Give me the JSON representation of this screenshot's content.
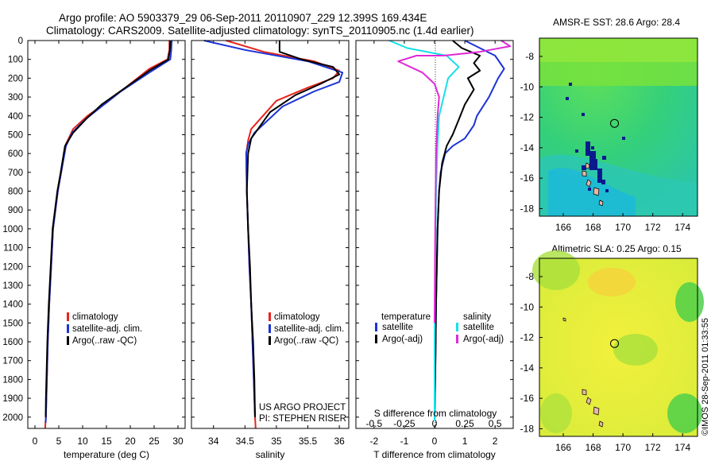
{
  "header": {
    "line1": "Argo profile: AO 5903379_29 06-Sep-2011 20110907_229 12.399S 169.434E",
    "line2": "Climatology: CARS2009. Satellite-adjusted climatology: synTS_20110905.nc (1.4d earlier)"
  },
  "colors": {
    "climatology": "#e8251c",
    "satellite": "#1c33d6",
    "argo": "#000000",
    "sal_satellite": "#16e0e8",
    "sal_argo": "#e029d6"
  },
  "credits": {
    "project": "US ARGO PROJECT",
    "pi": "PI: STEPHEN RISER",
    "stamp": "©IMOS 28-Sep-2011 01:33:55"
  },
  "legend_profiles": {
    "climatology": "climatology",
    "satellite": "satellite-adj. clim.",
    "argo": "Argo(..raw -QC)"
  },
  "legend_diff": {
    "temperature": "temperature",
    "salinity": "salinity",
    "satellite": "satellite",
    "argo": "Argo(-adj)"
  },
  "chart_data": [
    {
      "type": "line",
      "id": "temperature",
      "xlabel": "temperature (deg C)",
      "xlim": [
        -1.5,
        31.5
      ],
      "xticks": [
        0,
        5,
        10,
        15,
        20,
        25,
        30
      ],
      "ylim": [
        0,
        2060
      ],
      "yticks": [
        0,
        100,
        200,
        300,
        400,
        500,
        600,
        700,
        800,
        900,
        1000,
        1100,
        1200,
        1300,
        1400,
        1500,
        1600,
        1700,
        1800,
        1900,
        2000
      ],
      "y_reversed": true,
      "series": [
        {
          "name": "climatology",
          "color_key": "climatology",
          "x": [
            28.2,
            28.2,
            27.8,
            24,
            19,
            15,
            11,
            8,
            6.5,
            5.5,
            4.8,
            4.3,
            3.8,
            3.4,
            3.0,
            2.7,
            2.5,
            2.4,
            2.3,
            2.2,
            2.15
          ],
          "y": [
            0,
            50,
            100,
            150,
            250,
            330,
            400,
            470,
            550,
            700,
            800,
            900,
            1000,
            1200,
            1400,
            1600,
            1800,
            1900,
            2000,
            2030,
            2060
          ]
        },
        {
          "name": "satellite-adj. clim.",
          "color_key": "satellite",
          "x": [
            28.7,
            28.6,
            28.4,
            24,
            18,
            14,
            10.5,
            7.8,
            6.5,
            5.5,
            4.8,
            4.3,
            3.8,
            3.4,
            3.0,
            2.7,
            2.5,
            2.4,
            2.3,
            2.25
          ],
          "y": [
            0,
            50,
            100,
            170,
            270,
            350,
            420,
            490,
            560,
            700,
            800,
            900,
            1000,
            1200,
            1400,
            1600,
            1800,
            1900,
            2000,
            2030
          ]
        },
        {
          "name": "Argo(..raw -QC)",
          "color_key": "argo",
          "x": [
            28.4,
            28.3,
            28.0,
            24,
            19,
            14,
            11,
            8,
            6.3,
            5.4,
            4.7,
            4.2,
            3.7,
            3.3,
            2.9,
            2.6,
            2.4,
            2.3,
            2.25
          ],
          "y": [
            0,
            50,
            100,
            160,
            250,
            340,
            410,
            490,
            560,
            700,
            800,
            900,
            1000,
            1200,
            1400,
            1600,
            1800,
            1900,
            2000
          ]
        }
      ]
    },
    {
      "type": "line",
      "id": "salinity",
      "xlabel": "salinity",
      "xlim": [
        33.65,
        36.15
      ],
      "xticks": [
        34,
        34.5,
        35,
        35.5,
        36
      ],
      "ylim": [
        0,
        2060
      ],
      "y_reversed": true,
      "series": [
        {
          "name": "climatology",
          "color_key": "climatology",
          "x": [
            34.2,
            34.8,
            35.6,
            36.0,
            35.9,
            35.5,
            35.0,
            34.6,
            34.55,
            34.52,
            34.53,
            34.55,
            34.57,
            34.6,
            34.62,
            34.64,
            34.66,
            34.67
          ],
          "y": [
            0,
            60,
            110,
            160,
            200,
            250,
            320,
            470,
            530,
            600,
            800,
            1000,
            1200,
            1400,
            1600,
            1800,
            2000,
            2060
          ]
        },
        {
          "name": "satellite-adj. clim.",
          "color_key": "satellite",
          "x": [
            33.85,
            34.5,
            35.5,
            36.05,
            36.0,
            35.6,
            35.1,
            34.65,
            34.55,
            34.52,
            34.53,
            34.55,
            34.57,
            34.6,
            34.62,
            34.64,
            34.66
          ],
          "y": [
            0,
            50,
            110,
            170,
            220,
            270,
            350,
            490,
            550,
            600,
            800,
            1000,
            1200,
            1400,
            1600,
            1800,
            2000
          ]
        },
        {
          "name": "Argo(..raw -QC)",
          "color_key": "argo",
          "x": [
            35.05,
            35.05,
            35.4,
            35.9,
            36.0,
            35.7,
            35.3,
            34.9,
            34.6,
            34.55,
            34.53,
            34.55,
            34.58,
            34.6,
            34.63,
            34.65,
            34.66
          ],
          "y": [
            0,
            60,
            100,
            140,
            180,
            230,
            290,
            380,
            520,
            600,
            800,
            1000,
            1200,
            1400,
            1600,
            1800,
            2000
          ]
        }
      ]
    },
    {
      "type": "line",
      "id": "difference",
      "xlabel": "T difference from climatology",
      "xlabel2": "S difference from climatology",
      "xlim": [
        -2.6,
        2.6
      ],
      "xticks": [
        -2,
        -1,
        0,
        1,
        2
      ],
      "xticks2": [
        -0.5,
        -0.25,
        0,
        0.25,
        0.5
      ],
      "ylim": [
        0,
        2060
      ],
      "y_reversed": true,
      "series": [
        {
          "name": "T satellite",
          "color_key": "satellite",
          "x": [
            1.0,
            1.5,
            2.0,
            2.3,
            2.1,
            1.8,
            1.4,
            1.3,
            1.0,
            0.6,
            0.35,
            0.2,
            0.15,
            0.1,
            0.05,
            0.02,
            0.0
          ],
          "y": [
            0,
            40,
            80,
            150,
            200,
            300,
            400,
            450,
            520,
            560,
            600,
            700,
            800,
            1000,
            1400,
            1800,
            2000
          ]
        },
        {
          "name": "T Argo(-adj)",
          "color_key": "argo",
          "x": [
            0.6,
            0.9,
            1.5,
            1.3,
            1.5,
            1.1,
            1.3,
            1.0,
            0.8,
            0.6,
            0.4,
            0.25,
            0.15,
            0.1,
            0.05,
            0.02,
            0.0
          ],
          "y": [
            0,
            40,
            80,
            120,
            160,
            200,
            260,
            340,
            420,
            500,
            560,
            650,
            800,
            1000,
            1400,
            1800,
            2000
          ]
        },
        {
          "name": "S satellite",
          "color_key": "sal_satellite",
          "x": [
            -1.5,
            -0.9,
            0.4,
            0.8,
            0.45,
            0.3,
            0.15,
            0.1,
            0.05,
            0.02,
            0.0,
            0.0
          ],
          "y": [
            0,
            40,
            80,
            140,
            200,
            300,
            400,
            550,
            800,
            1200,
            1600,
            2020
          ]
        },
        {
          "name": "S Argo(-adj)",
          "color_key": "sal_argo",
          "x": [
            2.2,
            2.5,
            1.5,
            0.3,
            -0.6,
            -1.2,
            -0.4,
            0.0,
            0.15,
            0.1,
            0.05,
            0.02,
            0.0
          ],
          "y": [
            0,
            30,
            60,
            80,
            80,
            110,
            170,
            230,
            300,
            400,
            600,
            1000,
            1500
          ]
        }
      ]
    },
    {
      "type": "heatmap",
      "id": "sst_map",
      "title": "AMSR-E SST: 28.6  Argo: 28.4",
      "xlim": [
        164.4,
        175.0
      ],
      "ylim": [
        -18.5,
        -6.8
      ],
      "xticks": [
        166,
        168,
        170,
        172,
        174
      ],
      "yticks": [
        -8,
        -10,
        -12,
        -14,
        -16,
        -18
      ],
      "float_position": {
        "lon": 169.434,
        "lat": -12.399
      }
    },
    {
      "type": "heatmap",
      "id": "sla_map",
      "title": "Altimetric SLA: 0.25  Argo: 0.15",
      "xlim": [
        164.4,
        175.0
      ],
      "ylim": [
        -18.5,
        -6.8
      ],
      "xticks": [
        166,
        168,
        170,
        172,
        174
      ],
      "yticks": [
        -8,
        -10,
        -12,
        -14,
        -16,
        -18
      ],
      "float_position": {
        "lon": 169.434,
        "lat": -12.399
      }
    }
  ]
}
